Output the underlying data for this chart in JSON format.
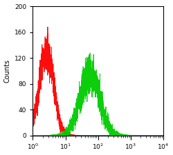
{
  "title": "",
  "xlabel": "",
  "ylabel": "Counts",
  "xlim_log": [
    0,
    4
  ],
  "ylim": [
    0,
    200
  ],
  "yticks": [
    0,
    40,
    80,
    120,
    160,
    200
  ],
  "red_peak_log": 0.42,
  "red_peak_y": 130,
  "red_sigma": 0.22,
  "green_peak_log": 1.75,
  "green_peak_y": 95,
  "green_sigma": 0.3,
  "red_color": "#ff0000",
  "green_color": "#00cc00",
  "bg_color": "#ffffff",
  "noise_seed_r": 43,
  "noise_seed_g": 45
}
